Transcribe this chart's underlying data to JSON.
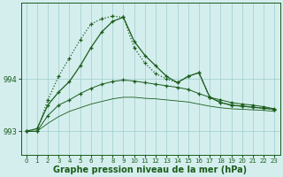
{
  "background_color": "#d4eeee",
  "grid_color": "#a0cccc",
  "line_color": "#1a5c1a",
  "xlabel": "Graphe pression niveau de la mer (hPa)",
  "xlabel_fontsize": 7,
  "yticks": [
    993,
    994
  ],
  "xtick_labels": [
    "0",
    "1",
    "2",
    "3",
    "4",
    "5",
    "6",
    "7",
    "8",
    "9",
    "10",
    "11",
    "12",
    "13",
    "14",
    "15",
    "16",
    "17",
    "18",
    "19",
    "20",
    "21",
    "22",
    "23"
  ],
  "xlim": [
    -0.5,
    23.5
  ],
  "ylim": [
    992.55,
    995.45
  ],
  "series_dotted": [
    993.0,
    993.0,
    993.6,
    994.05,
    994.4,
    994.75,
    995.05,
    995.15,
    995.2,
    995.18,
    994.6,
    994.3,
    994.1,
    994.0,
    993.93,
    994.05,
    994.12,
    993.65,
    993.55,
    993.5,
    993.48,
    993.46,
    993.44,
    993.42
  ],
  "series_peaked": [
    993.0,
    993.05,
    993.5,
    993.75,
    993.95,
    994.25,
    994.6,
    994.9,
    995.1,
    995.18,
    994.72,
    994.45,
    994.25,
    994.05,
    993.93,
    994.05,
    994.12,
    993.65,
    993.55,
    993.5,
    993.48,
    993.46,
    993.44,
    993.42
  ],
  "series_flat1": [
    993.0,
    993.0,
    993.3,
    993.5,
    993.6,
    993.72,
    993.82,
    993.9,
    993.95,
    993.98,
    993.96,
    993.93,
    993.9,
    993.87,
    993.84,
    993.8,
    993.72,
    993.65,
    993.6,
    993.55,
    993.52,
    993.5,
    993.47,
    993.43
  ],
  "series_flat2": [
    993.0,
    993.0,
    993.15,
    993.28,
    993.38,
    993.45,
    993.52,
    993.57,
    993.62,
    993.65,
    993.65,
    993.63,
    993.62,
    993.6,
    993.58,
    993.56,
    993.52,
    993.48,
    993.45,
    993.43,
    993.42,
    993.41,
    993.4,
    993.38
  ]
}
